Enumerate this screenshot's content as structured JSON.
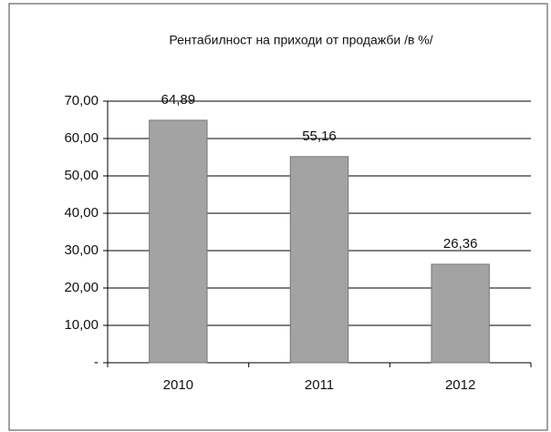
{
  "chart_data": {
    "type": "bar",
    "title": "Рентабилност на приходи от продажби /в %/",
    "categories": [
      "2010",
      "2011",
      "2012"
    ],
    "values": [
      64.89,
      55.16,
      26.36
    ],
    "value_labels": [
      "64,89",
      "55,16",
      "26,36"
    ],
    "color": "#a3a3a3",
    "ylim": [
      0,
      70
    ],
    "yticks": [
      {
        "value": 0,
        "label": "-"
      },
      {
        "value": 10,
        "label": "10,00"
      },
      {
        "value": 20,
        "label": "20,00"
      },
      {
        "value": 30,
        "label": "30,00"
      },
      {
        "value": 40,
        "label": "40,00"
      },
      {
        "value": 50,
        "label": "50,00"
      },
      {
        "value": 60,
        "label": "60,00"
      },
      {
        "value": 70,
        "label": "70,00"
      }
    ],
    "grid": true
  }
}
